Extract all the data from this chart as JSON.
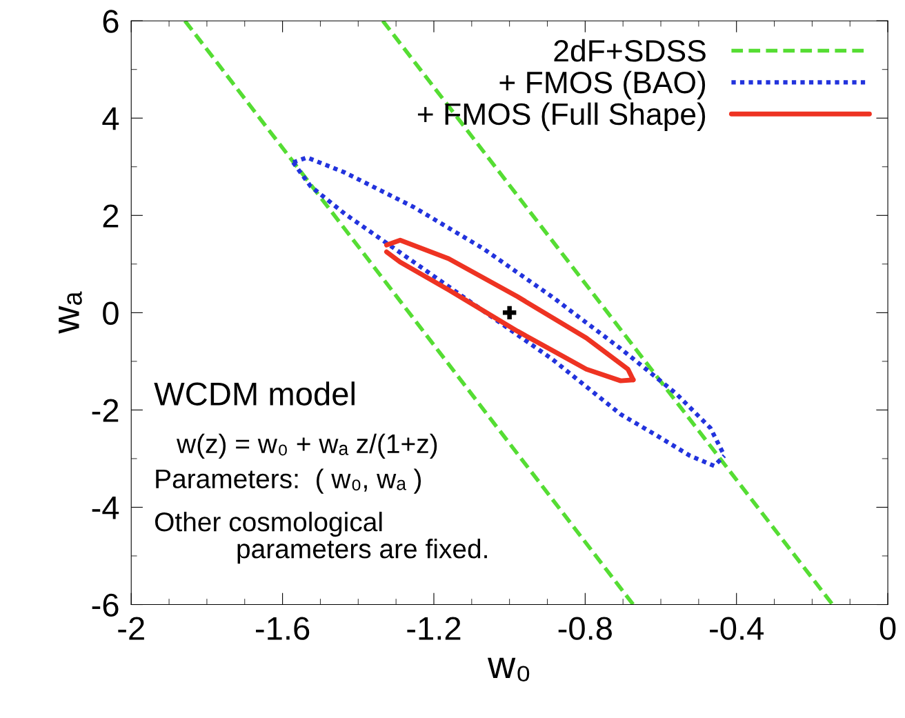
{
  "chart_data": {
    "type": "line",
    "xlabel": "w₀",
    "ylabel": "wₐ",
    "xlim": [
      -2,
      0
    ],
    "ylim": [
      -6,
      6
    ],
    "xticks": [
      -2,
      -1.6,
      -1.2,
      -0.8,
      -0.4,
      0
    ],
    "yticks": [
      -6,
      -4,
      -2,
      0,
      2,
      4,
      6
    ],
    "grid": false,
    "legend": "top right",
    "series": [
      {
        "name": "2dF+SDSS",
        "color": "#55dd33",
        "line_style": "dashed",
        "x": [
          -1.858,
          -0.673
        ],
        "values": [
          6,
          -6
        ]
      },
      {
        "color": "#55dd33",
        "line_style": "dashed",
        "x": [
          -1.335,
          -0.146
        ],
        "values": [
          6,
          -6
        ]
      },
      {
        "name": "+ FMOS (BAO)",
        "color": "#2233dd",
        "line_style": "dotted",
        "x": [
          -1.572,
          -1.535,
          -1.435,
          -1.253,
          -1.07,
          -0.888,
          -0.706,
          -0.56,
          -0.469,
          -0.432
        ],
        "values": [
          3.09,
          3.19,
          2.88,
          2.17,
          1.32,
          0.33,
          -0.74,
          -1.66,
          -2.37,
          -2.94
        ]
      },
      {
        "color": "#2233dd",
        "line_style": "dotted",
        "x": [
          -1.572,
          -1.526,
          -1.435,
          -1.253,
          -1.07,
          -0.888,
          -0.706,
          -0.614,
          -0.523,
          -0.459,
          -0.432
        ],
        "values": [
          3.09,
          2.6,
          2.03,
          1.04,
          0.04,
          -0.95,
          -2.09,
          -2.51,
          -2.94,
          -3.15,
          -2.94
        ]
      },
      {
        "name": "+ FMOS (Full Shape)",
        "color": "#ee3322",
        "line_style": "solid",
        "x": [
          -1.325,
          -1.289,
          -1.161,
          -0.979,
          -0.797,
          -0.687,
          -0.673
        ],
        "values": [
          1.39,
          1.49,
          1.11,
          0.33,
          -0.52,
          -1.16,
          -1.38
        ]
      },
      {
        "color": "#ee3322",
        "line_style": "solid",
        "x": [
          -1.325,
          -1.289,
          -1.161,
          -0.979,
          -0.797,
          -0.706,
          -0.673
        ],
        "values": [
          1.25,
          1.04,
          0.47,
          -0.38,
          -1.16,
          -1.4,
          -1.38
        ]
      },
      {
        "type": "scatter",
        "color": "#000000",
        "marker": "cross",
        "x": [
          -1
        ],
        "values": [
          0
        ]
      }
    ],
    "annotations": [
      "WCDM model",
      "w(z) = w₀ + wₐ z/(1+z)",
      "Parameters:  ( w₀, wₐ )",
      "Other cosmological\n           parameters are fixed."
    ]
  }
}
